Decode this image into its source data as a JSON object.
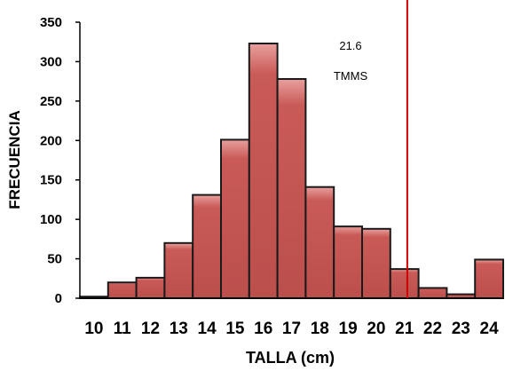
{
  "chart_data": {
    "type": "bar",
    "title": "",
    "xlabel": "TALLA (cm)",
    "ylabel": "FRECUENCIA",
    "categories": [
      "10",
      "11",
      "12",
      "13",
      "14",
      "15",
      "16",
      "17",
      "18",
      "19",
      "20",
      "21",
      "22",
      "23",
      "24"
    ],
    "values": [
      2,
      20,
      26,
      70,
      131,
      201,
      323,
      278,
      141,
      91,
      88,
      37,
      13,
      5,
      49
    ],
    "ylim": [
      0,
      350
    ],
    "yticks": [
      0,
      50,
      100,
      150,
      200,
      250,
      300,
      350
    ],
    "grid": false,
    "legend": "none",
    "bar_color": "#C0504D",
    "bar_edge_color": "#1a1a1a",
    "reference_line": {
      "x": 21.6,
      "color": "#CC0000",
      "label_value": "21.6",
      "label_text": "TMMS"
    }
  }
}
